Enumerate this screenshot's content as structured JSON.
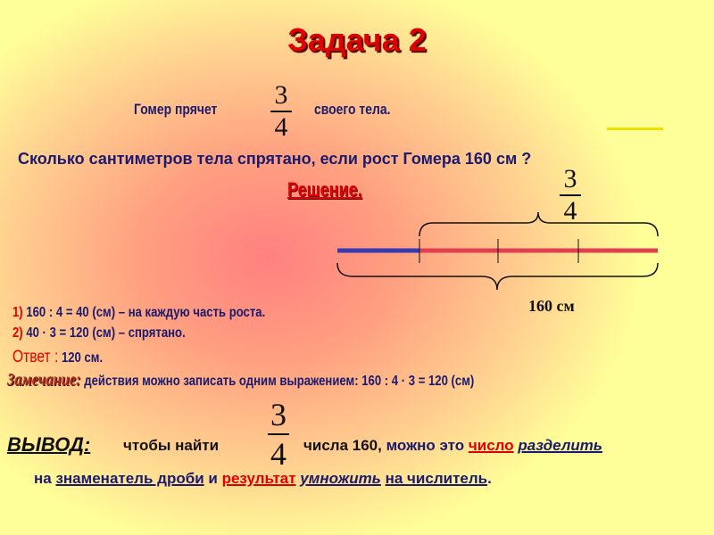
{
  "title": "Задача 2",
  "statement": {
    "before": "Гомер прячет",
    "fraction": {
      "num": "3",
      "den": "4"
    },
    "after": "своего тела."
  },
  "question": "Сколько сантиметров тела спрятано, если рост Гомера  160 см ?",
  "solution_heading": "Решение.",
  "diagram": {
    "top_fraction": {
      "num": "3",
      "den": "4"
    },
    "total_label": "160 см",
    "colors": {
      "known": "#3a3ab0",
      "hidden": "#e04050"
    }
  },
  "steps": [
    {
      "num": "1)",
      "text": "160 : 4 = 40 (см) – на каждую часть роста."
    },
    {
      "num": "2)",
      "text": "40 ·  3 = 120 (см) – спрятано."
    }
  ],
  "answer": {
    "label": "Ответ :",
    "value": "120 см."
  },
  "remark": {
    "label": "Замечание:",
    "text": "действия можно записать одним выражением: 160 : 4 ·  3 = 120 (см)"
  },
  "conclusion": {
    "label": "ВЫВОД:",
    "p1": "чтобы найти",
    "fraction": {
      "num": "3",
      "den": "4"
    },
    "p2": "числа 160,",
    "p3": "можно это",
    "p4": "число",
    "p5": "разделить",
    "p6": "на",
    "p7": "знаменатель  дроби",
    "p8": "и",
    "p9": "результат",
    "p10": "умножить",
    "p11": "на числитель",
    "p12": "."
  }
}
